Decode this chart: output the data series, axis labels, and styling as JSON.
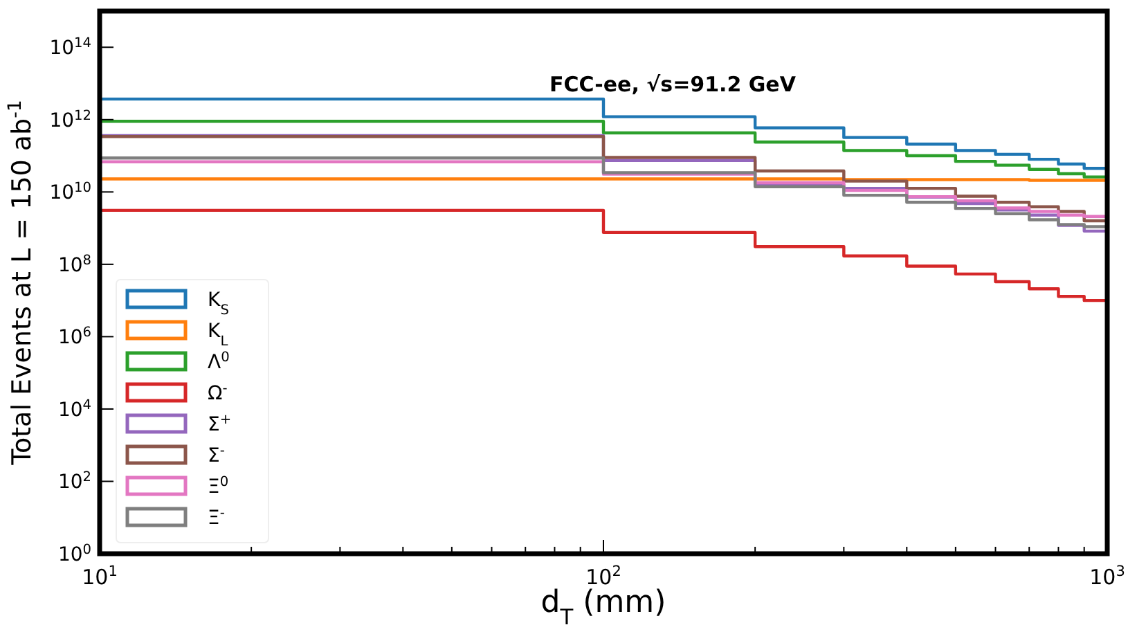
{
  "chart_data": {
    "type": "histogram",
    "title": "FCC-ee, √s=91.2 GeV",
    "xlabel": "d$_{T}$ (mm)",
    "ylabel": "Total Events at L = 150 ab$^{-1}$",
    "log": "xy",
    "grid": false,
    "legend": "bottom left",
    "bins": [
      10,
      100,
      200,
      300,
      400,
      500,
      600,
      700,
      800,
      900,
      1000
    ],
    "xlim": [
      10,
      1000
    ],
    "xticks": [
      {
        "value": 10,
        "label": "10$^{1}$"
      },
      {
        "value": 100,
        "label": "10$^{2}$"
      },
      {
        "value": 1000,
        "label": "10$^{3}$"
      }
    ],
    "ylim": [
      1,
      1000000000000000.0
    ],
    "yticks": [
      {
        "value": 1,
        "label": "10$^{0}$"
      },
      {
        "value": 100,
        "label": "10$^{2}$"
      },
      {
        "value": 10000,
        "label": "10$^{4}$"
      },
      {
        "value": 1000000,
        "label": "10$^{6}$"
      },
      {
        "value": 100000000,
        "label": "10$^{8}$"
      },
      {
        "value": 10000000000,
        "label": "10$^{10}$"
      },
      {
        "value": 1000000000000,
        "label": "10$^{12}$"
      },
      {
        "value": 100000000000000,
        "label": "10$^{14}$"
      }
    ],
    "series": [
      {
        "name": "K$_{S}$",
        "color": "#1f77b4",
        "values": [
          3700000000000.0,
          1200000000000.0,
          590000000000.0,
          320000000000.0,
          210000000000.0,
          140000000000.0,
          110000000000.0,
          80000000000.0,
          59000000000.0,
          45000000000.0
        ]
      },
      {
        "name": "K$_{L}$",
        "color": "#ff7f0e",
        "values": [
          23000000000.0,
          23000000000.0,
          23000000000.0,
          22000000000.0,
          22000000000.0,
          22000000000.0,
          22000000000.0,
          21000000000.0,
          21000000000.0,
          21000000000.0
        ]
      },
      {
        "name": "Λ$^{0}$",
        "color": "#2ca02c",
        "values": [
          900000000000.0,
          430000000000.0,
          240000000000.0,
          140000000000.0,
          100000000000.0,
          70000000000.0,
          55000000000.0,
          42000000000.0,
          32000000000.0,
          26000000000.0
        ]
      },
      {
        "name": "Ω$^{-}$",
        "color": "#d62728",
        "values": [
          3100000000.0,
          760000000.0,
          310000000.0,
          170000000.0,
          89000000.0,
          54000000.0,
          33000000.0,
          21000000.0,
          13000000.0,
          10000000.0
        ]
      },
      {
        "name": "Σ$^{+}$",
        "color": "#9467bd",
        "values": [
          360000000000.0,
          74000000000.0,
          16000000000.0,
          12600000000.0,
          7200000000.0,
          4800000000.0,
          3200000000.0,
          2300000000.0,
          1200000000.0,
          830000000.0
        ]
      },
      {
        "name": "Σ$^{-}$",
        "color": "#8c564b",
        "values": [
          340000000000.0,
          90000000000.0,
          38000000000.0,
          20000000000.0,
          12600000000.0,
          7600000000.0,
          5200000000.0,
          3900000000.0,
          2900000000.0,
          1600000000.0
        ]
      },
      {
        "name": "Ξ$^{0}$",
        "color": "#e377c2",
        "values": [
          68000000000.0,
          31000000000.0,
          18000000000.0,
          11000000000.0,
          7400000000.0,
          5700000000.0,
          3600000000.0,
          2900000000.0,
          2300000000.0,
          2100000000.0
        ]
      },
      {
        "name": "Ξ$^{-}$",
        "color": "#7f7f7f",
        "values": [
          87000000000.0,
          34000000000.0,
          14000000000.0,
          8100000000.0,
          5200000000.0,
          3500000000.0,
          2500000000.0,
          1700000000.0,
          1260000000.0,
          1100000000.0
        ]
      }
    ]
  }
}
